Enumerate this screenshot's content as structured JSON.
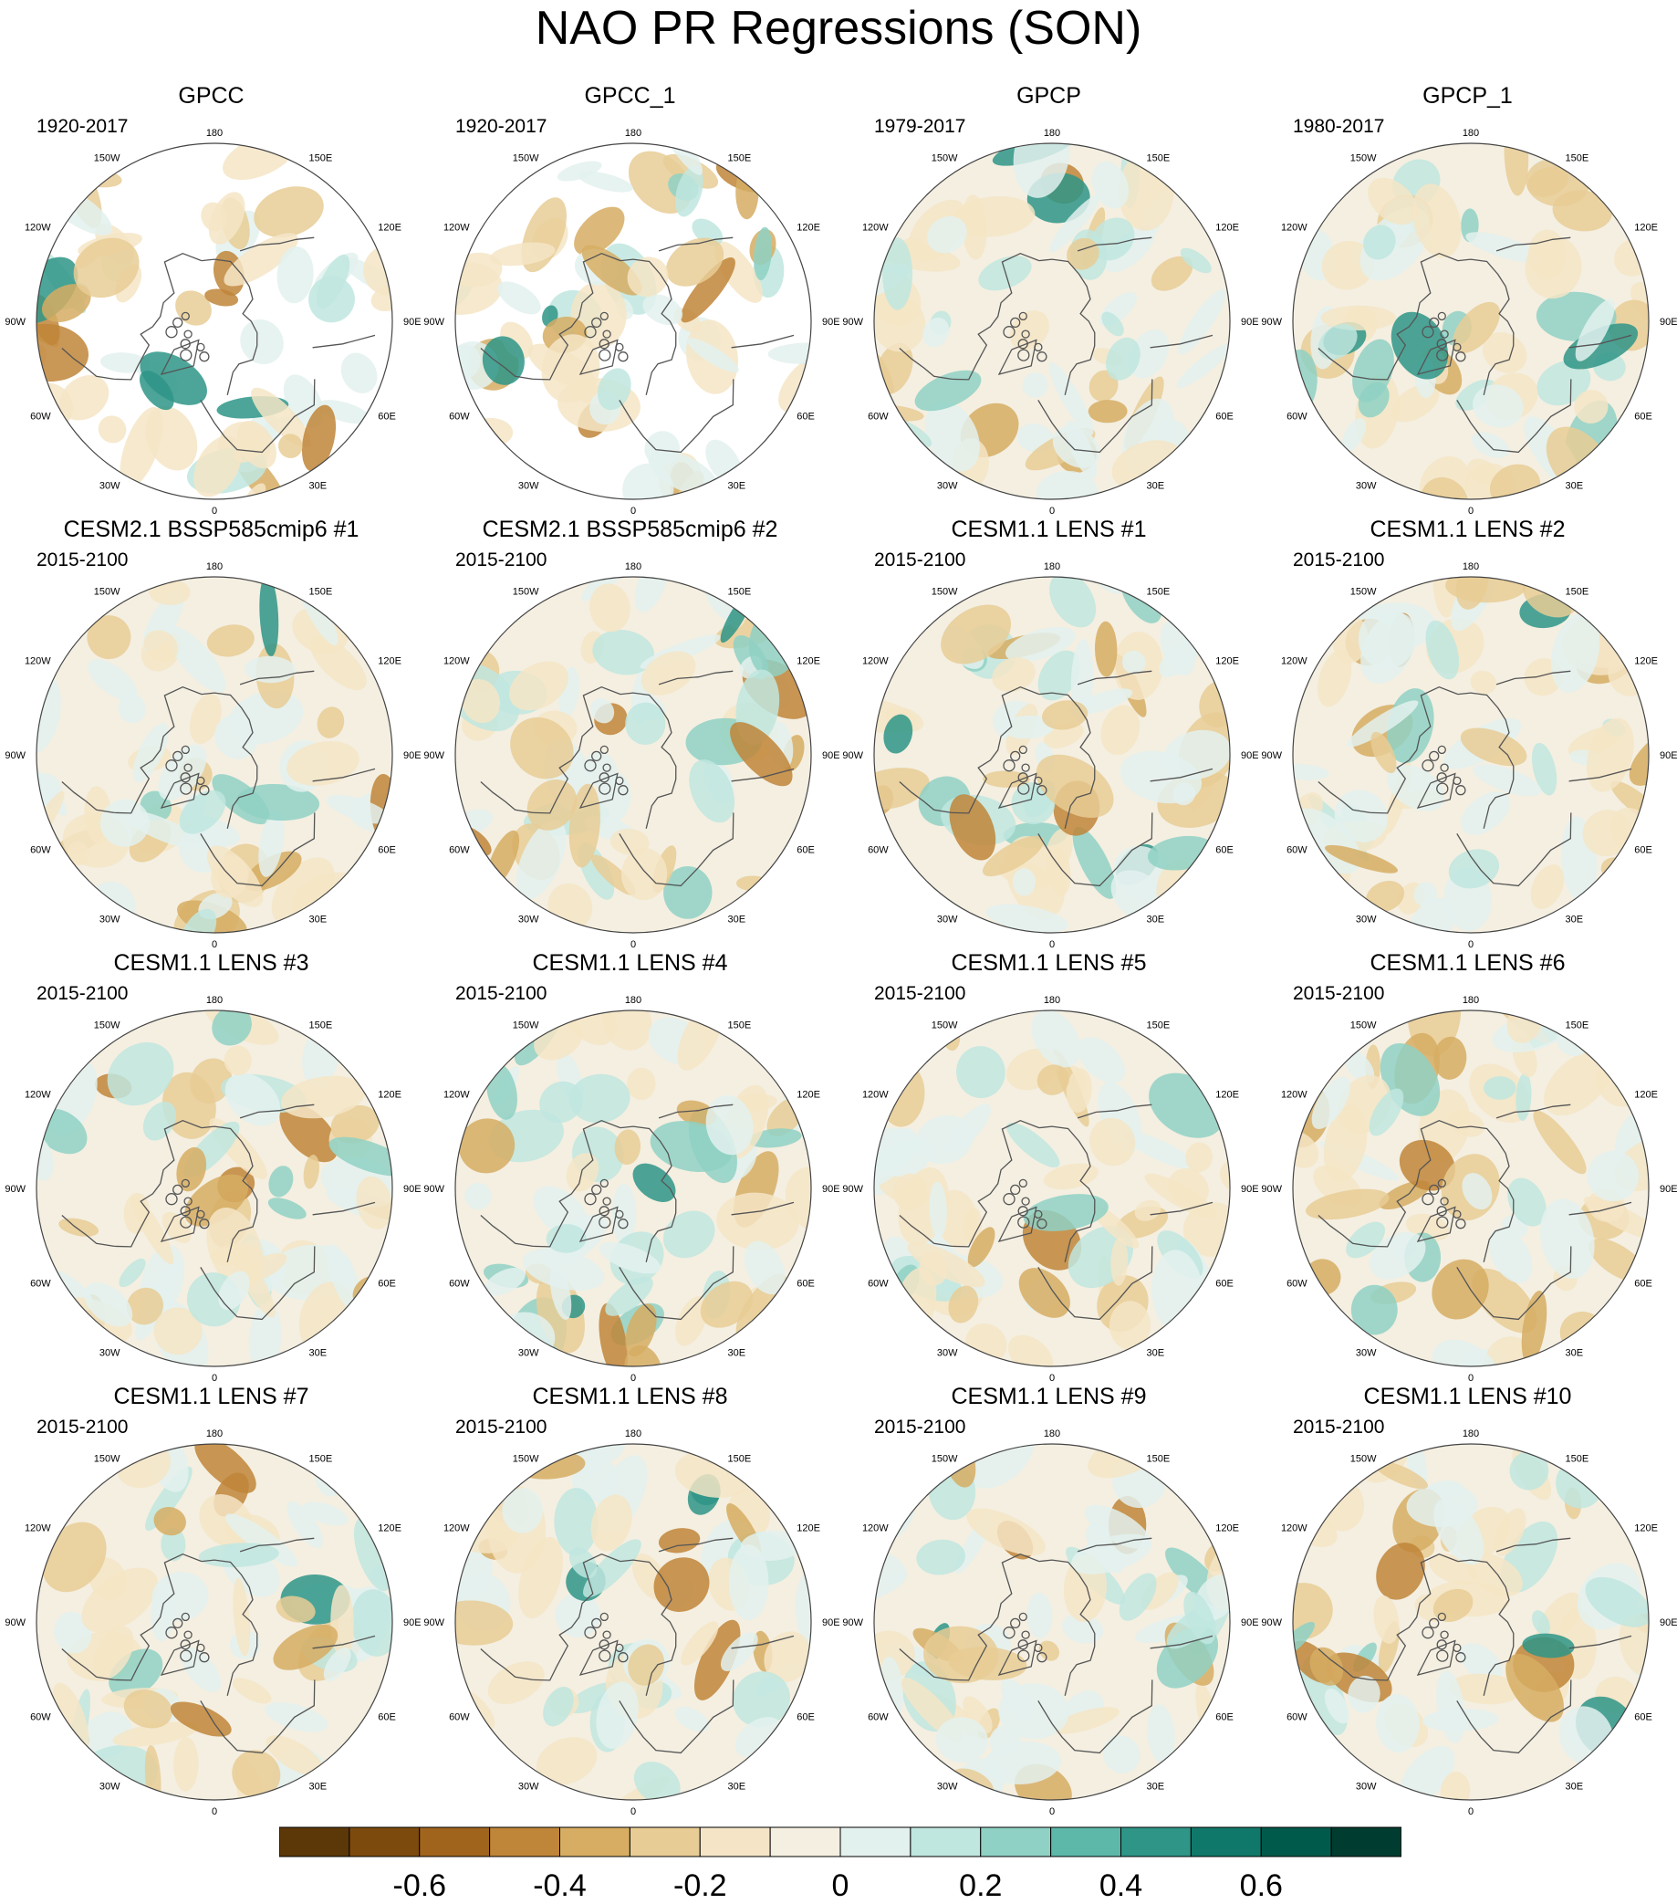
{
  "chart_data": {
    "type": "heatmap",
    "title": "NAO PR Regressions (SON)",
    "projection": "polar stereographic (Northern Hemisphere)",
    "longitude_labels": [
      "180",
      "150E",
      "120E",
      "90E",
      "60E",
      "30E",
      "0",
      "30W",
      "60W",
      "90W",
      "120W",
      "150W"
    ],
    "panels": [
      {
        "title": "GPCC",
        "period": "1920-2017"
      },
      {
        "title": "GPCC_1",
        "period": "1920-2017"
      },
      {
        "title": "GPCP",
        "period": "1979-2017"
      },
      {
        "title": "GPCP_1",
        "period": "1980-2017"
      },
      {
        "title": "CESM2.1 BSSP585cmip6 #1",
        "period": "2015-2100"
      },
      {
        "title": "CESM2.1 BSSP585cmip6 #2",
        "period": "2015-2100"
      },
      {
        "title": "CESM1.1 LENS #1",
        "period": "2015-2100"
      },
      {
        "title": "CESM1.1 LENS #2",
        "period": "2015-2100"
      },
      {
        "title": "CESM1.1 LENS #3",
        "period": "2015-2100"
      },
      {
        "title": "CESM1.1 LENS #4",
        "period": "2015-2100"
      },
      {
        "title": "CESM1.1 LENS #5",
        "period": "2015-2100"
      },
      {
        "title": "CESM1.1 LENS #6",
        "period": "2015-2100"
      },
      {
        "title": "CESM1.1 LENS #7",
        "period": "2015-2100"
      },
      {
        "title": "CESM1.1 LENS #8",
        "period": "2015-2100"
      },
      {
        "title": "CESM1.1 LENS #9",
        "period": "2015-2100"
      },
      {
        "title": "CESM1.1 LENS #10",
        "period": "2015-2100"
      }
    ],
    "colorbar": {
      "colors": [
        "#5c3707",
        "#7d4a0d",
        "#a0641d",
        "#bf8538",
        "#d6ad63",
        "#e8cc95",
        "#f5e5c6",
        "#f4efe1",
        "#e3f1ee",
        "#bfe6df",
        "#8fd1c4",
        "#5db8a9",
        "#2e9587",
        "#0f786a",
        "#005a4c",
        "#003c30"
      ],
      "tick_labels": [
        "-0.6",
        "-0.4",
        "-0.2",
        "0",
        "0.2",
        "0.4",
        "0.6"
      ]
    }
  }
}
